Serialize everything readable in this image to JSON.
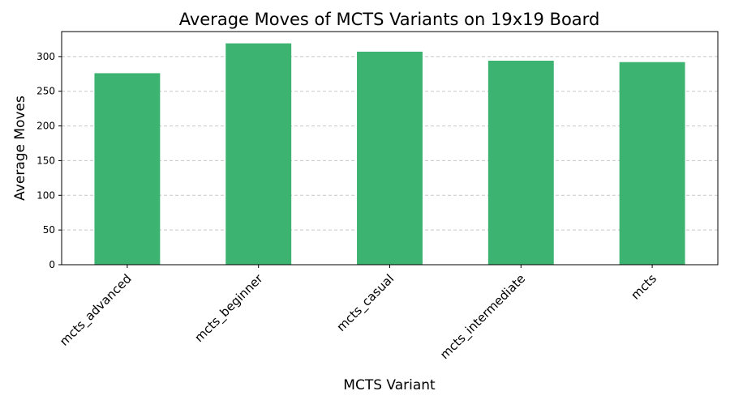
{
  "chart_data": {
    "type": "bar",
    "title": "Average Moves of MCTS Variants on 19x19 Board",
    "xlabel": "MCTS Variant",
    "ylabel": "Average Moves",
    "categories": [
      "mcts_advanced",
      "mcts_beginner",
      "mcts_casual",
      "mcts_intermediate",
      "mcts"
    ],
    "values": [
      276,
      319,
      307,
      294,
      292
    ],
    "ylim": [
      0,
      336
    ],
    "yticks": [
      0,
      50,
      100,
      150,
      200,
      250,
      300
    ],
    "grid": "y-dashed",
    "bar_color": "#3cb371",
    "grid_color": "#c8c8c8"
  }
}
